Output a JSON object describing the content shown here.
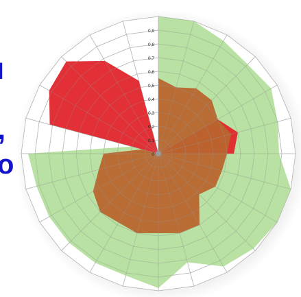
{
  "chart_data": {
    "type": "radar",
    "title": "",
    "axis_count": 24,
    "rmax": 1.0,
    "ring_step": 0.1,
    "tick_labels": [
      "0",
      "0,1",
      "0,2",
      "0,3",
      "0,4",
      "0,5",
      "0,6",
      "0,7",
      "0,8",
      "0,9"
    ],
    "grid": true,
    "series": [
      {
        "color": "#a8d98c",
        "opacity": 0.8,
        "values": [
          1.0,
          1.0,
          0.95,
          0.92,
          0.95,
          0.9,
          0.88,
          1.0,
          1.0,
          0.98,
          0.95,
          0.82,
          0.98,
          0.92,
          0.92,
          0.92,
          0.92,
          0.92,
          0.95,
          0.2,
          0.0,
          0.0,
          0.0,
          0.0
        ]
      },
      {
        "color": "#e0252b",
        "opacity": 0.95,
        "values": [
          0.0,
          0.0,
          0.0,
          0.0,
          0.5,
          0.6,
          0.55,
          0.0,
          0.0,
          0.0,
          0.0,
          0.0,
          0.0,
          0.0,
          0.0,
          0.0,
          0.0,
          0.0,
          0.0,
          0.82,
          0.92,
          0.95,
          0.78,
          0.55
        ]
      },
      {
        "color": "#b8652e",
        "opacity": 0.95,
        "values": [
          0.55,
          0.5,
          0.55,
          0.55,
          0.5,
          0.55,
          0.5,
          0.48,
          0.48,
          0.42,
          0.6,
          0.6,
          0.58,
          0.6,
          0.58,
          0.6,
          0.55,
          0.45,
          0.4,
          0.12,
          0.0,
          0.0,
          0.0,
          0.0
        ]
      }
    ]
  },
  "side_fragments": [
    {
      "text": "I",
      "size": 34,
      "top": 87
    },
    {
      "text": ",",
      "size": 44,
      "top": 167
    },
    {
      "text": "o",
      "size": 40,
      "top": 220
    }
  ]
}
